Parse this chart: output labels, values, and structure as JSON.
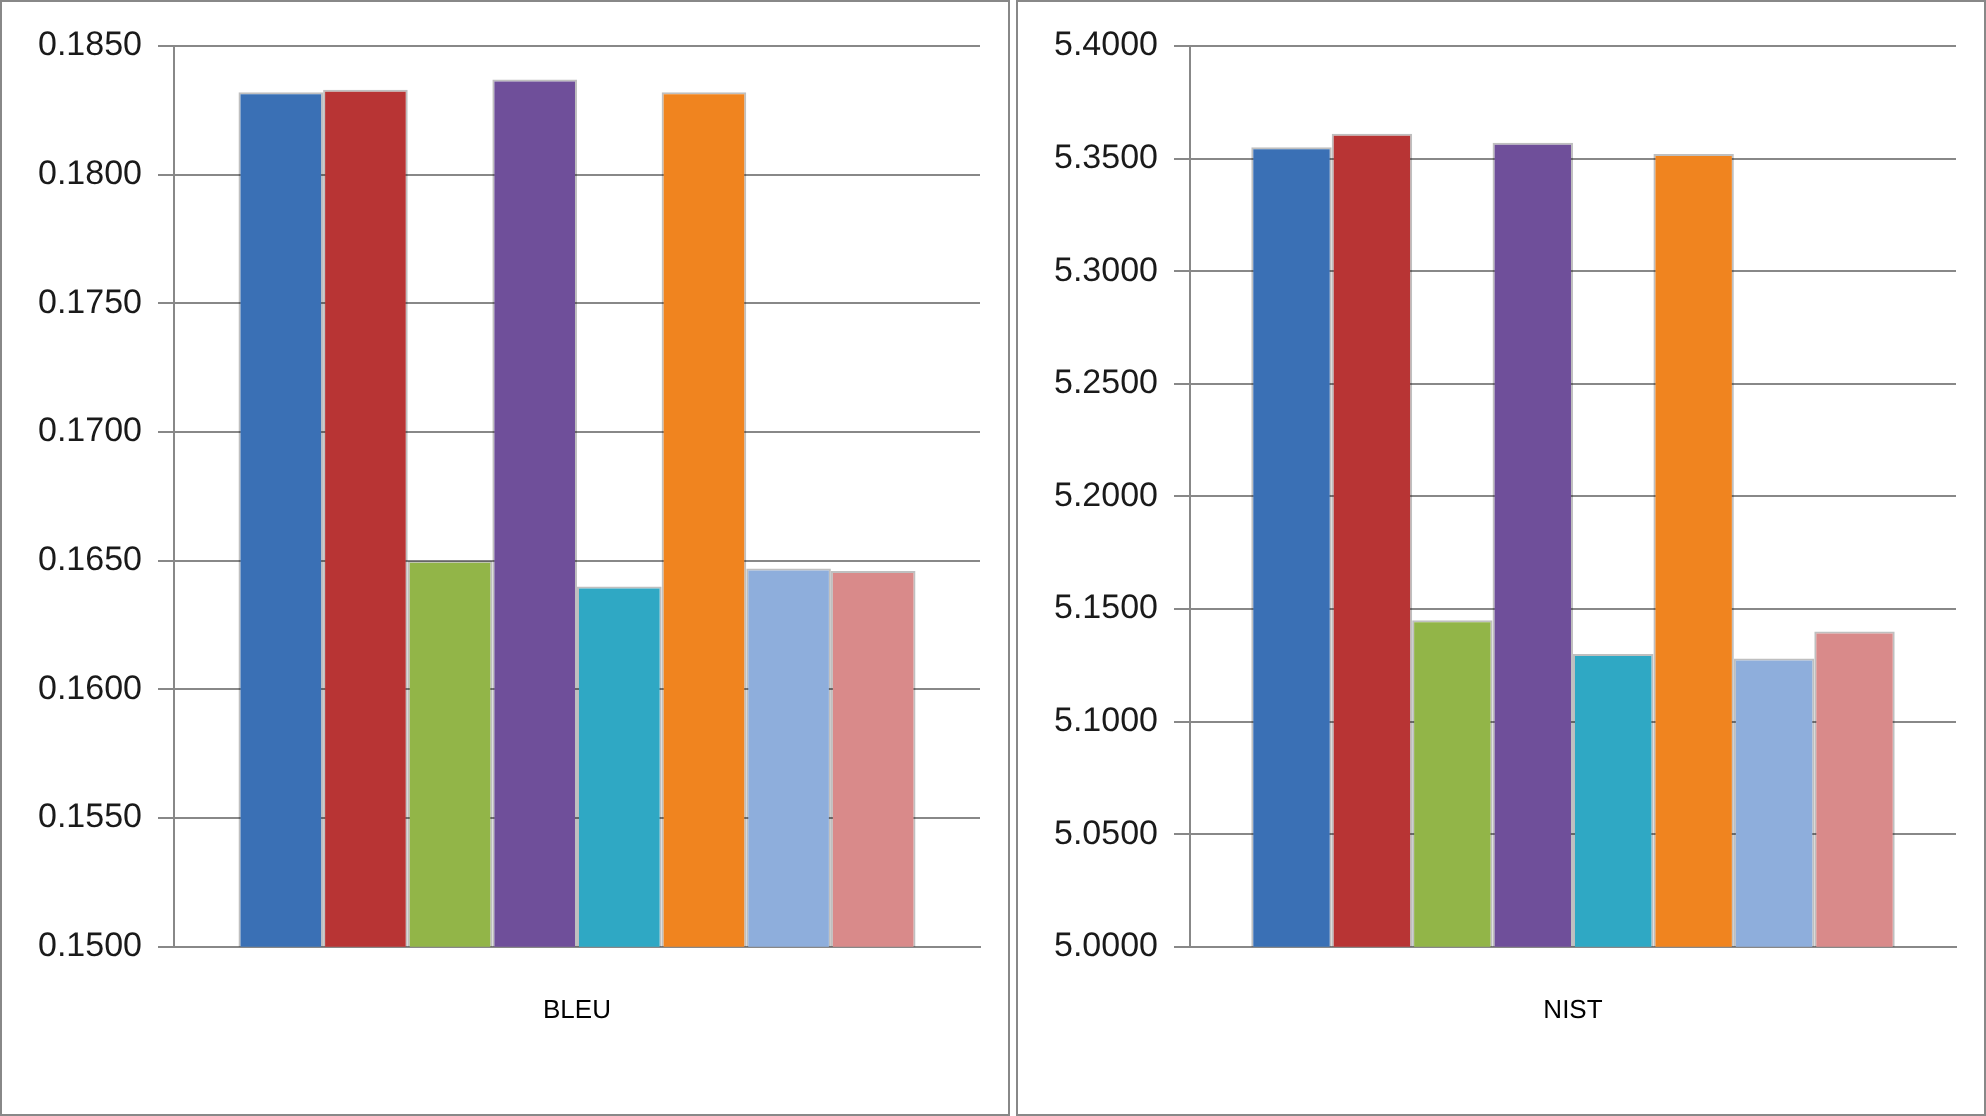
{
  "chart_data": [
    {
      "type": "bar",
      "categories": [
        "BLEU"
      ],
      "ylim": [
        0.15,
        0.185
      ],
      "yticks": [
        {
          "value": 0.15,
          "label": "0.1500"
        },
        {
          "value": 0.155,
          "label": "0.1550"
        },
        {
          "value": 0.16,
          "label": "0.1600"
        },
        {
          "value": 0.165,
          "label": "0.1650"
        },
        {
          "value": 0.17,
          "label": "0.1700"
        },
        {
          "value": 0.175,
          "label": "0.1750"
        },
        {
          "value": 0.18,
          "label": "0.1800"
        },
        {
          "value": 0.185,
          "label": "0.1850"
        }
      ],
      "grid": "y",
      "legend": false,
      "series": [
        {
          "color": "#3a70b5",
          "values": [
            0.1832
          ]
        },
        {
          "color": "#b83434",
          "values": [
            0.1833
          ]
        },
        {
          "color": "#92b548",
          "values": [
            0.165
          ]
        },
        {
          "color": "#6f4f9a",
          "values": [
            0.1837
          ]
        },
        {
          "color": "#2fa8c4",
          "values": [
            0.164
          ]
        },
        {
          "color": "#f0841f",
          "values": [
            0.1832
          ]
        },
        {
          "color": "#8eaedc",
          "values": [
            0.1647
          ]
        },
        {
          "color": "#d98a8a",
          "values": [
            0.1646
          ]
        }
      ]
    },
    {
      "type": "bar",
      "categories": [
        "NIST"
      ],
      "ylim": [
        5.0,
        5.4
      ],
      "yticks": [
        {
          "value": 5.0,
          "label": "5.0000"
        },
        {
          "value": 5.05,
          "label": "5.0500"
        },
        {
          "value": 5.1,
          "label": "5.1000"
        },
        {
          "value": 5.15,
          "label": "5.1500"
        },
        {
          "value": 5.2,
          "label": "5.2000"
        },
        {
          "value": 5.25,
          "label": "5.2500"
        },
        {
          "value": 5.3,
          "label": "5.3000"
        },
        {
          "value": 5.35,
          "label": "5.3500"
        },
        {
          "value": 5.4,
          "label": "5.4000"
        }
      ],
      "grid": "y",
      "legend": false,
      "series": [
        {
          "color": "#3a70b5",
          "values": [
            5.355
          ]
        },
        {
          "color": "#b83434",
          "values": [
            5.361
          ]
        },
        {
          "color": "#92b548",
          "values": [
            5.145
          ]
        },
        {
          "color": "#6f4f9a",
          "values": [
            5.357
          ]
        },
        {
          "color": "#2fa8c4",
          "values": [
            5.13
          ]
        },
        {
          "color": "#f0841f",
          "values": [
            5.352
          ]
        },
        {
          "color": "#8eaedc",
          "values": [
            5.128
          ]
        },
        {
          "color": "#d98a8a",
          "values": [
            5.14
          ]
        }
      ]
    }
  ]
}
